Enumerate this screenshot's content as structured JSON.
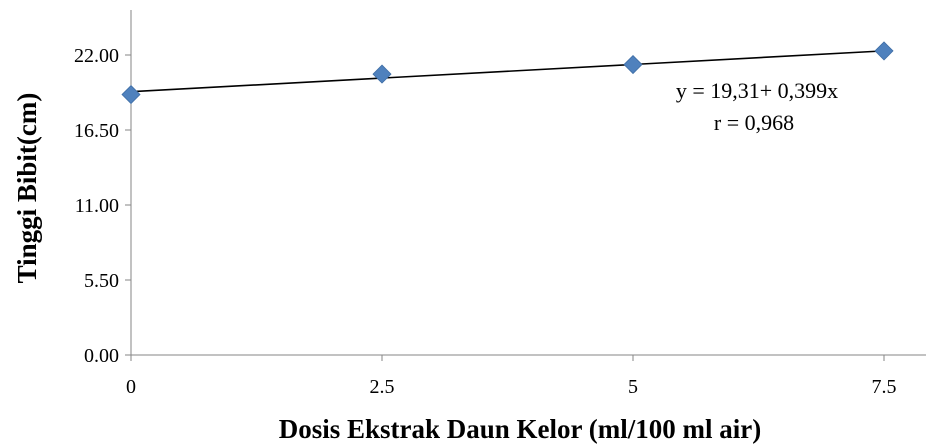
{
  "chart_data": {
    "type": "scatter",
    "x": [
      0,
      2.5,
      5,
      7.5
    ],
    "y": [
      19.1,
      20.6,
      21.3,
      22.3
    ],
    "xlabel": "Dosis Ekstrak Daun Kelor (ml/100 ml air)",
    "ylabel": "Tinggi Bibit(cm)",
    "xticks": [
      "0",
      "2.5",
      "5",
      "7.5"
    ],
    "yticks": [
      "0.00",
      "5.50",
      "11.00",
      "16.50",
      "22.00"
    ],
    "xlim": [
      0,
      7.5
    ],
    "ylim": [
      0,
      25.3
    ],
    "trendline": {
      "intercept": 19.31,
      "slope": 0.399
    },
    "annotations": {
      "equation": "y = 19,31+ 0,399x",
      "r": "r = 0,968"
    },
    "grid": false,
    "marker_color": "#4f81bd",
    "marker_shape": "diamond",
    "line_color": "#000000"
  }
}
